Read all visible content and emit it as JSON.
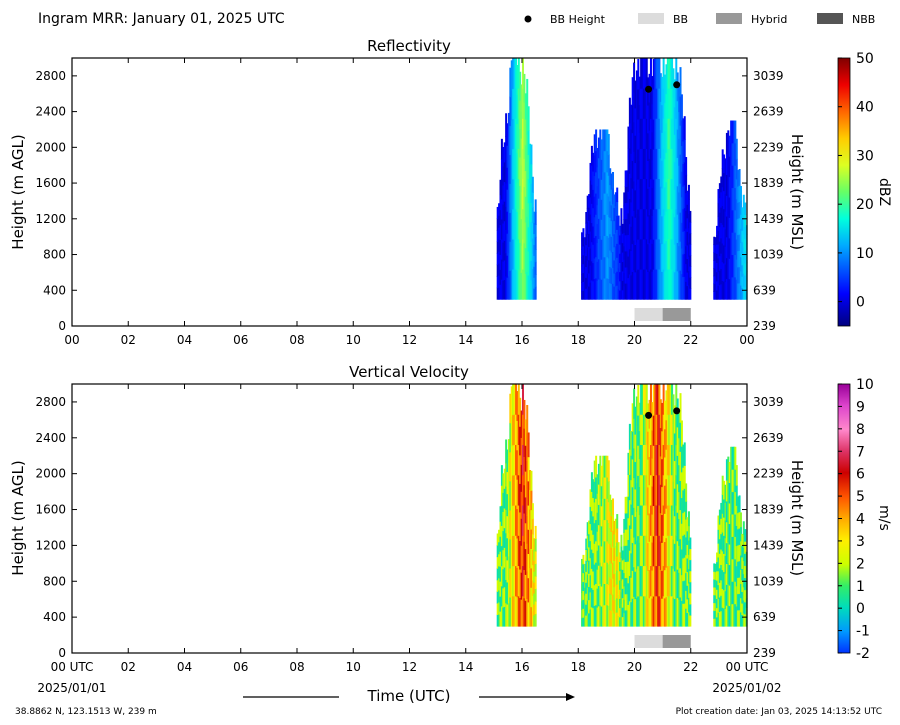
{
  "header": {
    "title": "Ingram MRR:  January 01, 2025 UTC",
    "legend": {
      "bb_height_label": "BB Height",
      "bb_label": "BB",
      "hybrid_label": "Hybrid",
      "nbb_label": "NBB"
    }
  },
  "footer": {
    "time_label": "Time (UTC)",
    "start_date": "2025/01/01",
    "end_date": "2025/01/02",
    "location": "38.8862 N, 123.1513 W, 239 m",
    "creation_date": "Plot creation date: Jan 03, 2025 14:13:52 UTC"
  },
  "colors": {
    "bb": "#dcdcdc",
    "hybrid": "#999999",
    "nbb": "#555555",
    "bb_height_marker": "#000000"
  },
  "x_ticks_top": [
    "00",
    "02",
    "04",
    "06",
    "08",
    "10",
    "12",
    "14",
    "16",
    "18",
    "20",
    "22",
    "00"
  ],
  "x_ticks_bottom": [
    "00 UTC",
    "02",
    "04",
    "06",
    "08",
    "10",
    "12",
    "14",
    "16",
    "18",
    "20",
    "22",
    "00 UTC"
  ],
  "chart_data": [
    {
      "type": "heatmap",
      "title": "Reflectivity",
      "ylabel": "Height (m AGL)",
      "y2label": "Height (m MSL)",
      "colorbar_label": "dBZ",
      "xlim": [
        0,
        24
      ],
      "ylim": [
        0,
        3000
      ],
      "yticks": [
        "0",
        "400",
        "800",
        "1200",
        "1600",
        "2000",
        "2400",
        "2800"
      ],
      "y2ticks": [
        "239",
        "639",
        "1039",
        "1439",
        "1839",
        "2239",
        "2639",
        "3039"
      ],
      "colorbar_ticks": [
        "0",
        "10",
        "20",
        "30",
        "40",
        "50"
      ],
      "colorbar_range": [
        -5,
        50
      ],
      "bb_height_points": [
        {
          "x": 20.5,
          "y": 2650
        },
        {
          "x": 21.5,
          "y": 2700
        }
      ],
      "bb_type_bars": [
        {
          "start": 20.0,
          "end": 21.0,
          "type": "BB"
        },
        {
          "start": 21.0,
          "end": 22.0,
          "type": "Hybrid"
        }
      ],
      "echo_regions": [
        {
          "x_start": 15.1,
          "x_end": 16.5,
          "height_top": 3000,
          "height_bottom": 300,
          "core_x": 16.0,
          "core_value": 25
        },
        {
          "x_start": 18.1,
          "x_end": 19.5,
          "height_top": 2200,
          "height_bottom": 300,
          "core_x": 19.0,
          "core_value": 8
        },
        {
          "x_start": 19.5,
          "x_end": 22.0,
          "height_top": 3000,
          "height_bottom": 300,
          "core_x": 21.2,
          "core_value": 18
        },
        {
          "x_start": 22.8,
          "x_end": 24.0,
          "height_top": 2300,
          "height_bottom": 300,
          "core_x": 23.9,
          "core_value": 12
        }
      ]
    },
    {
      "type": "heatmap",
      "title": "Vertical Velocity",
      "ylabel": "Height (m AGL)",
      "y2label": "Height (m MSL)",
      "colorbar_label": "m/s",
      "xlim": [
        0,
        24
      ],
      "ylim": [
        0,
        3000
      ],
      "yticks": [
        "0",
        "400",
        "800",
        "1200",
        "1600",
        "2000",
        "2400",
        "2800"
      ],
      "y2ticks": [
        "239",
        "639",
        "1039",
        "1439",
        "1839",
        "2239",
        "2639",
        "3039"
      ],
      "colorbar_ticks": [
        "-2",
        "-1",
        "0",
        "1",
        "2",
        "3",
        "4",
        "5",
        "6",
        "7",
        "8",
        "9",
        "10"
      ],
      "colorbar_range": [
        -2,
        10
      ],
      "bb_height_points": [
        {
          "x": 20.5,
          "y": 2650
        },
        {
          "x": 21.5,
          "y": 2700
        }
      ],
      "bb_type_bars": [
        {
          "start": 20.0,
          "end": 21.0,
          "type": "BB"
        },
        {
          "start": 21.0,
          "end": 22.0,
          "type": "Hybrid"
        }
      ],
      "echo_regions": [
        {
          "x_start": 15.1,
          "x_end": 16.5,
          "height_top": 3000,
          "height_bottom": 300,
          "core_x": 16.0,
          "core_value": 6
        },
        {
          "x_start": 18.1,
          "x_end": 19.5,
          "height_top": 2200,
          "height_bottom": 300,
          "core_x": 19.2,
          "core_value": 3
        },
        {
          "x_start": 19.5,
          "x_end": 22.0,
          "height_top": 3000,
          "height_bottom": 300,
          "core_x": 20.8,
          "core_value": 6
        },
        {
          "x_start": 22.8,
          "x_end": 24.0,
          "height_top": 2300,
          "height_bottom": 300,
          "core_x": 23.6,
          "core_value": 1
        }
      ]
    }
  ]
}
